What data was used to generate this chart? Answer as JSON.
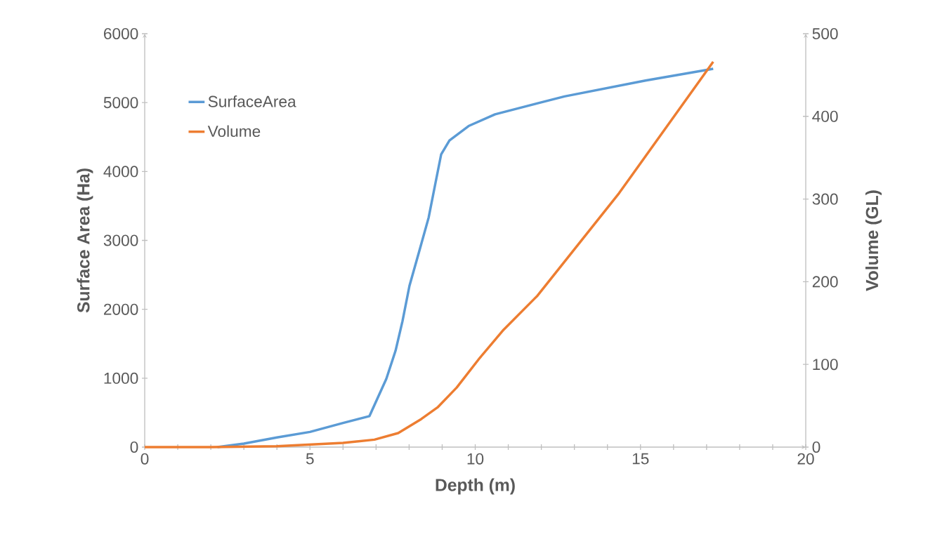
{
  "chart_data": {
    "type": "line",
    "xlabel": "Depth (m)",
    "ylabel": "Surface Area (Ha)",
    "y2label": "Volume (GL)",
    "xlim": [
      0,
      20
    ],
    "xticks": [
      0,
      {
        "value": 1,
        "label": null
      },
      {
        "value": 2,
        "label": null
      },
      {
        "value": 3,
        "label": null
      },
      {
        "value": 4,
        "label": null
      },
      5,
      {
        "value": 6,
        "label": null
      },
      {
        "value": 7,
        "label": null
      },
      {
        "value": 8,
        "label": null
      },
      {
        "value": 9,
        "label": null
      },
      10,
      {
        "value": 11,
        "label": null
      },
      {
        "value": 12,
        "label": null
      },
      {
        "value": 13,
        "label": null
      },
      {
        "value": 14,
        "label": null
      },
      15,
      {
        "value": 16,
        "label": null
      },
      {
        "value": 17,
        "label": null
      },
      {
        "value": 18,
        "label": null
      },
      {
        "value": 19,
        "label": null
      },
      20
    ],
    "ylim": [
      0,
      6000
    ],
    "yticks": [
      0,
      1000,
      2000,
      3000,
      4000,
      5000,
      6000
    ],
    "y2lim": [
      0,
      500
    ],
    "y2ticks": [
      0,
      100,
      200,
      300,
      400,
      500
    ],
    "legend": "top left",
    "series": [
      {
        "name": "SurfaceArea",
        "color": "#5b9bd5",
        "x": [
          2.2,
          3,
          4,
          5,
          6,
          6.8,
          7.31,
          7.59,
          7.8,
          8.01,
          8.31,
          8.59,
          8.8,
          8.97,
          9.22,
          9.8,
          10.6,
          12.7,
          15.15,
          17.2
        ],
        "values": [
          0,
          50,
          140,
          220,
          350,
          450,
          990,
          1400,
          1830,
          2340,
          2850,
          3330,
          3840,
          4250,
          4450,
          4660,
          4830,
          5090,
          5320,
          5490
        ]
      },
      {
        "name": "Volume",
        "color": "#ed7d31",
        "axis": "y2",
        "x": [
          0,
          2,
          4,
          5,
          6,
          6.95,
          7.67,
          8.37,
          8.86,
          9.44,
          10.14,
          10.86,
          11.88,
          14.35,
          17.2
        ],
        "values": [
          0,
          0,
          1,
          3,
          5,
          9,
          17,
          34,
          48,
          72,
          108,
          142,
          183,
          307,
          466
        ]
      }
    ]
  }
}
